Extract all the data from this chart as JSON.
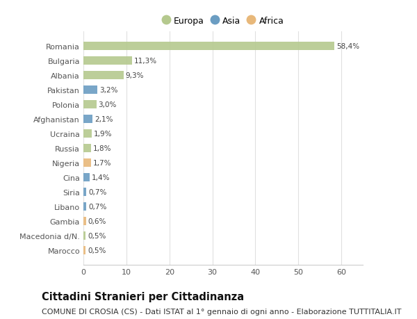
{
  "countries": [
    "Romania",
    "Bulgaria",
    "Albania",
    "Pakistan",
    "Polonia",
    "Afghanistan",
    "Ucraina",
    "Russia",
    "Nigeria",
    "Cina",
    "Siria",
    "Libano",
    "Gambia",
    "Macedonia d/N.",
    "Marocco"
  ],
  "values": [
    58.4,
    11.3,
    9.3,
    3.2,
    3.0,
    2.1,
    1.9,
    1.8,
    1.7,
    1.4,
    0.7,
    0.7,
    0.6,
    0.5,
    0.5
  ],
  "labels": [
    "58,4%",
    "11,3%",
    "9,3%",
    "3,2%",
    "3,0%",
    "2,1%",
    "1,9%",
    "1,8%",
    "1,7%",
    "1,4%",
    "0,7%",
    "0,7%",
    "0,6%",
    "0,5%",
    "0,5%"
  ],
  "continents": [
    "Europa",
    "Europa",
    "Europa",
    "Asia",
    "Europa",
    "Asia",
    "Europa",
    "Europa",
    "Africa",
    "Asia",
    "Asia",
    "Asia",
    "Africa",
    "Europa",
    "Africa"
  ],
  "colors": {
    "Europa": "#b5c98e",
    "Asia": "#6b9dc2",
    "Africa": "#e8b87a"
  },
  "legend_items": [
    "Europa",
    "Asia",
    "Africa"
  ],
  "legend_colors": [
    "#b5c98e",
    "#6b9dc2",
    "#e8b87a"
  ],
  "title": "Cittadini Stranieri per Cittadinanza",
  "subtitle": "COMUNE DI CROSIA (CS) - Dati ISTAT al 1° gennaio di ogni anno - Elaborazione TUTTITALIA.IT",
  "xlim": [
    0,
    65
  ],
  "xticks": [
    0,
    10,
    20,
    30,
    40,
    50,
    60
  ],
  "background_color": "#ffffff",
  "grid_color": "#e0e0e0",
  "bar_height": 0.55,
  "title_fontsize": 10.5,
  "subtitle_fontsize": 8,
  "label_fontsize": 7.5,
  "tick_fontsize": 8,
  "legend_fontsize": 9
}
